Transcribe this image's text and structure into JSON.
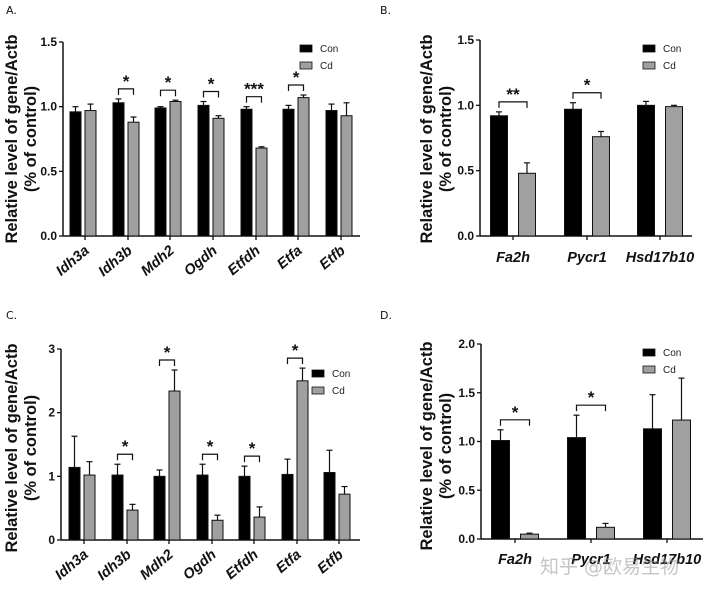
{
  "colors": {
    "con": "#000000",
    "cd": "#a0a0a0",
    "axis": "#111111"
  },
  "watermark": "知乎 @欧易生物",
  "chart_data": [
    {
      "panel": "A.",
      "type": "bar",
      "ylabel": [
        "Relative level of gene/Actb",
        "(% of control)"
      ],
      "ylim": [
        0,
        1.5
      ],
      "yticks": [
        0.0,
        0.5,
        1.0,
        1.5
      ],
      "ytick_labels": [
        "0.0",
        "0.5",
        "1.0",
        "1.5"
      ],
      "categories": [
        "Idh3a",
        "Idh3b",
        "Mdh2",
        "Ogdh",
        "Etfdh",
        "Etfa",
        "Etfb"
      ],
      "category_label_style": "rotated",
      "legend": {
        "position": "top-right",
        "entries": [
          "Con",
          "Cd"
        ]
      },
      "series": [
        {
          "name": "Con",
          "values": [
            0.96,
            1.03,
            0.99,
            1.01,
            0.98,
            0.98,
            0.97
          ],
          "errors": [
            0.04,
            0.03,
            0.01,
            0.03,
            0.02,
            0.03,
            0.05
          ]
        },
        {
          "name": "Cd",
          "values": [
            0.97,
            0.88,
            1.04,
            0.91,
            0.68,
            1.07,
            0.93
          ],
          "errors": [
            0.05,
            0.04,
            0.01,
            0.02,
            0.01,
            0.02,
            0.1
          ]
        }
      ],
      "significance": [
        "",
        "*",
        "*",
        "*",
        "***",
        "*",
        ""
      ]
    },
    {
      "panel": "B.",
      "type": "bar",
      "ylabel": [
        "Relative level of gene/Actb",
        "(% of control)"
      ],
      "ylim": [
        0,
        1.5
      ],
      "yticks": [
        0.0,
        0.5,
        1.0,
        1.5
      ],
      "ytick_labels": [
        "0.0",
        "0.5",
        "1.0",
        "1.5"
      ],
      "categories": [
        "Fa2h",
        "Pycr1",
        "Hsd17b10"
      ],
      "category_label_style": "italic",
      "legend": {
        "position": "top-right",
        "entries": [
          "Con",
          "Cd"
        ]
      },
      "series": [
        {
          "name": "Con",
          "values": [
            0.92,
            0.97,
            1.0
          ],
          "errors": [
            0.03,
            0.05,
            0.03
          ]
        },
        {
          "name": "Cd",
          "values": [
            0.48,
            0.76,
            0.99
          ],
          "errors": [
            0.08,
            0.04,
            0.01
          ]
        }
      ],
      "significance": [
        "**",
        "*",
        ""
      ]
    },
    {
      "panel": "C.",
      "type": "bar",
      "ylabel": [
        "Relative level of gene/Actb",
        "(% of control)"
      ],
      "ylim": [
        0,
        3
      ],
      "yticks": [
        0,
        1,
        2,
        3
      ],
      "ytick_labels": [
        "0",
        "1",
        "2",
        "3"
      ],
      "categories": [
        "Idh3a",
        "Idh3b",
        "Mdh2",
        "Ogdh",
        "Etfdh",
        "Etfa",
        "Etfb"
      ],
      "category_label_style": "rotated",
      "legend": {
        "position": "top-right",
        "entries": [
          "Con",
          "Cd"
        ]
      },
      "series": [
        {
          "name": "Con",
          "values": [
            1.14,
            1.02,
            1.0,
            1.02,
            1.0,
            1.03,
            1.06
          ],
          "errors": [
            0.49,
            0.17,
            0.1,
            0.17,
            0.16,
            0.24,
            0.35
          ]
        },
        {
          "name": "Cd",
          "values": [
            1.02,
            0.47,
            2.34,
            0.31,
            0.36,
            2.5,
            0.72
          ],
          "errors": [
            0.21,
            0.09,
            0.33,
            0.08,
            0.16,
            0.2,
            0.12
          ]
        }
      ],
      "significance": [
        "",
        "*",
        "*",
        "*",
        "*",
        "*",
        ""
      ]
    },
    {
      "panel": "D.",
      "type": "bar",
      "ylabel": [
        "Relative level of gene/Actb",
        "(% of control)"
      ],
      "ylim": [
        0,
        2.0
      ],
      "yticks": [
        0.0,
        0.5,
        1.0,
        1.5,
        2.0
      ],
      "ytick_labels": [
        "0.0",
        "0.5",
        "1.0",
        "1.5",
        "2.0"
      ],
      "categories": [
        "Fa2h",
        "Pycr1",
        "Hsd17b10"
      ],
      "category_label_style": "italic",
      "legend": {
        "position": "top-right",
        "entries": [
          "Con",
          "Cd"
        ]
      },
      "series": [
        {
          "name": "Con",
          "values": [
            1.01,
            1.04,
            1.13
          ],
          "errors": [
            0.11,
            0.23,
            0.35
          ]
        },
        {
          "name": "Cd",
          "values": [
            0.05,
            0.12,
            1.22
          ],
          "errors": [
            0.01,
            0.04,
            0.43
          ]
        }
      ],
      "significance": [
        "*",
        "*",
        ""
      ]
    }
  ]
}
